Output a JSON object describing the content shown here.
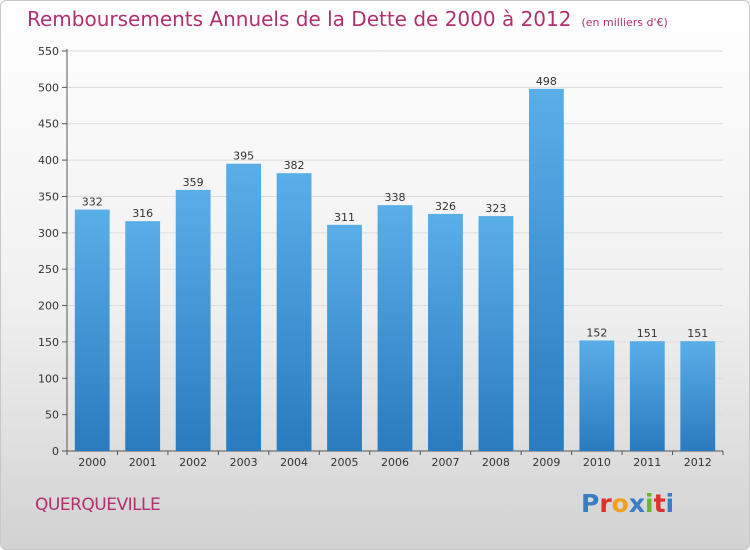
{
  "header": {
    "title": "Remboursements Annuels de la Dette de 2000 à 2012",
    "subtitle": "(en milliers d'€)"
  },
  "footer": {
    "commune": "QUERQUEVILLE",
    "logo_letters": [
      "P",
      "r",
      "o",
      "x",
      "i",
      "t",
      "i"
    ]
  },
  "colors": {
    "bar_top": "#5aaee8",
    "bar_bottom": "#2a7bbf",
    "title": "#b03070",
    "grid": "#dcdcdc"
  },
  "chart_data": {
    "type": "bar",
    "title": "Remboursements Annuels de la Dette de 2000 à 2012",
    "subtitle": "(en milliers d'€)",
    "xlabel": "",
    "ylabel": "",
    "categories": [
      "2000",
      "2001",
      "2002",
      "2003",
      "2004",
      "2005",
      "2006",
      "2007",
      "2008",
      "2009",
      "2010",
      "2011",
      "2012"
    ],
    "values": [
      332,
      316,
      359,
      395,
      382,
      311,
      338,
      326,
      323,
      498,
      152,
      151,
      151
    ],
    "ylim": [
      0,
      550
    ],
    "yticks": [
      0,
      50,
      100,
      150,
      200,
      250,
      300,
      350,
      400,
      450,
      500,
      550
    ],
    "grid": true,
    "legend": "none"
  }
}
